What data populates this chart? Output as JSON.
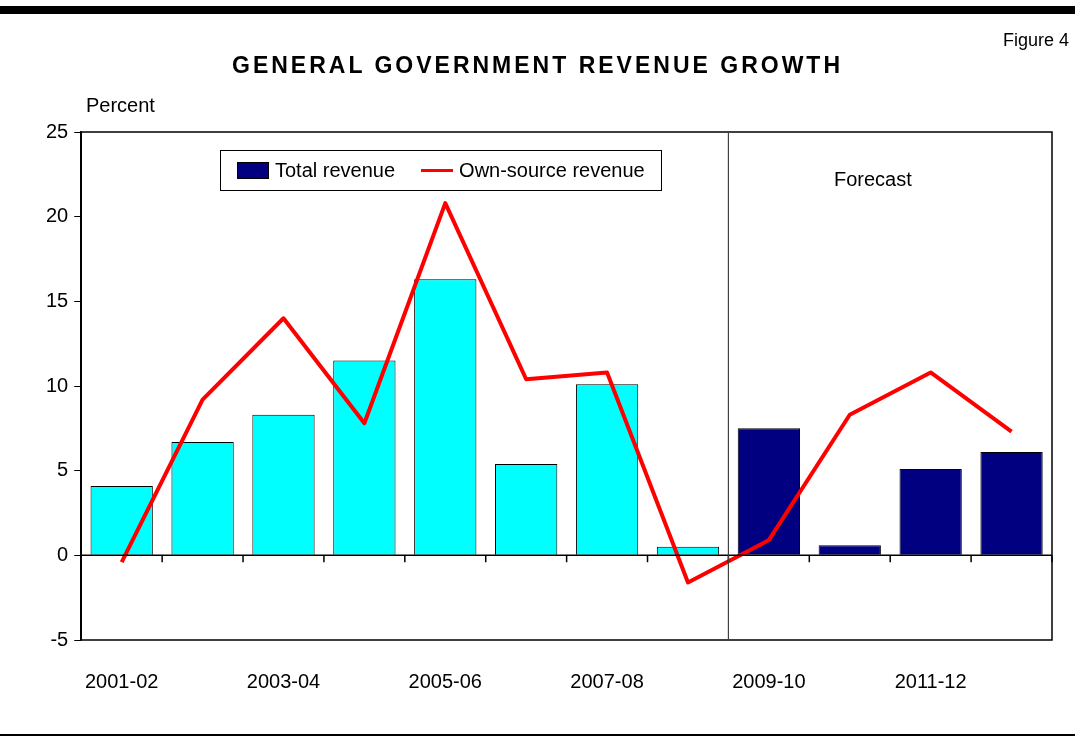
{
  "chart_data": {
    "type": "bar",
    "title": "GENERAL GOVERNMENT REVENUE GROWTH",
    "ylabel": "Percent",
    "annotations": [
      "Figure 4",
      "Forecast"
    ],
    "categories": [
      "2001-02",
      null,
      "2003-04",
      null,
      "2005-06",
      null,
      "2007-08",
      null,
      "2009-10",
      null,
      "2011-12",
      null
    ],
    "series": [
      {
        "name": "Total revenue",
        "color": "#000080",
        "colors": [
          "#00ffff",
          "#00ffff",
          "#00ffff",
          "#00ffff",
          "#00ffff",
          "#00ffff",
          "#00ffff",
          "#00ffff",
          "#000080",
          "#000080",
          "#000080",
          "#000080"
        ],
        "values": [
          4.1,
          6.7,
          8.3,
          11.5,
          16.3,
          5.4,
          10.1,
          0.5,
          7.5,
          0.6,
          5.1,
          6.1
        ]
      },
      {
        "name": "Own-source revenue",
        "type": "line",
        "color": "#ff0000",
        "values": [
          -0.4,
          9.2,
          14.0,
          7.8,
          20.8,
          10.4,
          10.8,
          -1.6,
          0.9,
          8.3,
          10.8,
          7.3
        ]
      }
    ],
    "ylim": [
      -5,
      25
    ],
    "yticks": [
      -5,
      0,
      5,
      10,
      15,
      20,
      25
    ],
    "ref_lines": [
      {
        "axis": "x",
        "value": "2009-10",
        "color": "#404040"
      }
    ],
    "grid": false,
    "legend": "top left",
    "marker": "none",
    "line_style": "solid"
  }
}
